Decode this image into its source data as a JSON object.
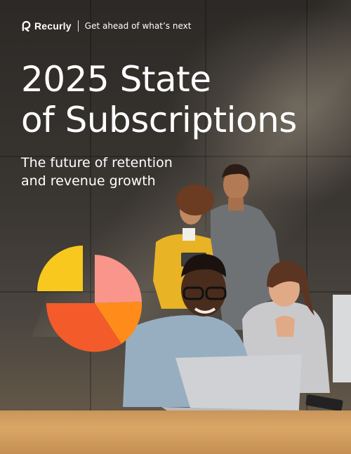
{
  "header": {
    "brand": "Recurly",
    "tagline": "Get ahead of what’s next",
    "logo_icon": "recurly-logo-icon"
  },
  "title": {
    "line1": "2025 State",
    "line2": "of Subscriptions"
  },
  "subtitle": {
    "line1": "The future of retention",
    "line2": "and revenue growth"
  },
  "colors": {
    "background": "#2c2926",
    "text": "#ffffff",
    "pie_yellow": "#f9c81e",
    "pie_pink": "#f9958a",
    "pie_orange": "#ff8c1a",
    "pie_red_orange": "#f35b2a"
  }
}
